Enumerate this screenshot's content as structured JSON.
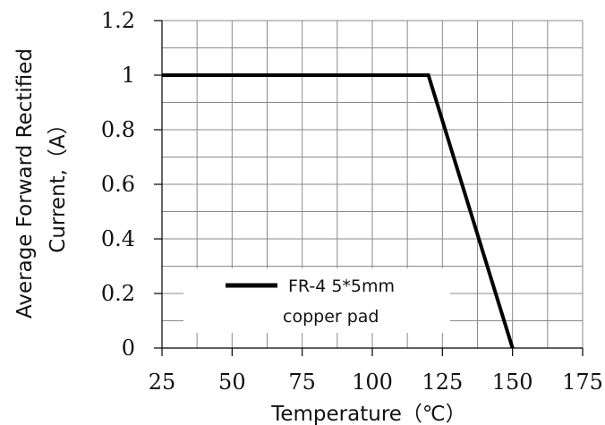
{
  "chart_data": {
    "type": "line",
    "xlabel": "Temperature（℃）",
    "ylabel_lines": [
      "Average Forward Rectified",
      "Current,（A）"
    ],
    "xlim": [
      25,
      175
    ],
    "ylim": [
      0,
      1.2
    ],
    "x_ticks": [
      25,
      50,
      75,
      100,
      125,
      150,
      175
    ],
    "x_tick_labels": [
      "25",
      "50",
      "75",
      "100",
      "125",
      "150",
      "175"
    ],
    "y_ticks": [
      0,
      0.2,
      0.4,
      0.6,
      0.8,
      1,
      1.2
    ],
    "y_tick_labels": [
      "0",
      "0.2",
      "0.4",
      "0.6",
      "0.8",
      "1",
      "1.2"
    ],
    "x_minor_step": 12.5,
    "y_minor_step": 0.1,
    "grid": true,
    "legend_placement": "bottom-left",
    "series": [
      {
        "name_lines": [
          "FR-4 5*5mm",
          "copper pad"
        ],
        "color": "#000000",
        "points": [
          [
            25,
            1
          ],
          [
            120,
            1
          ],
          [
            150,
            0
          ]
        ]
      }
    ]
  }
}
